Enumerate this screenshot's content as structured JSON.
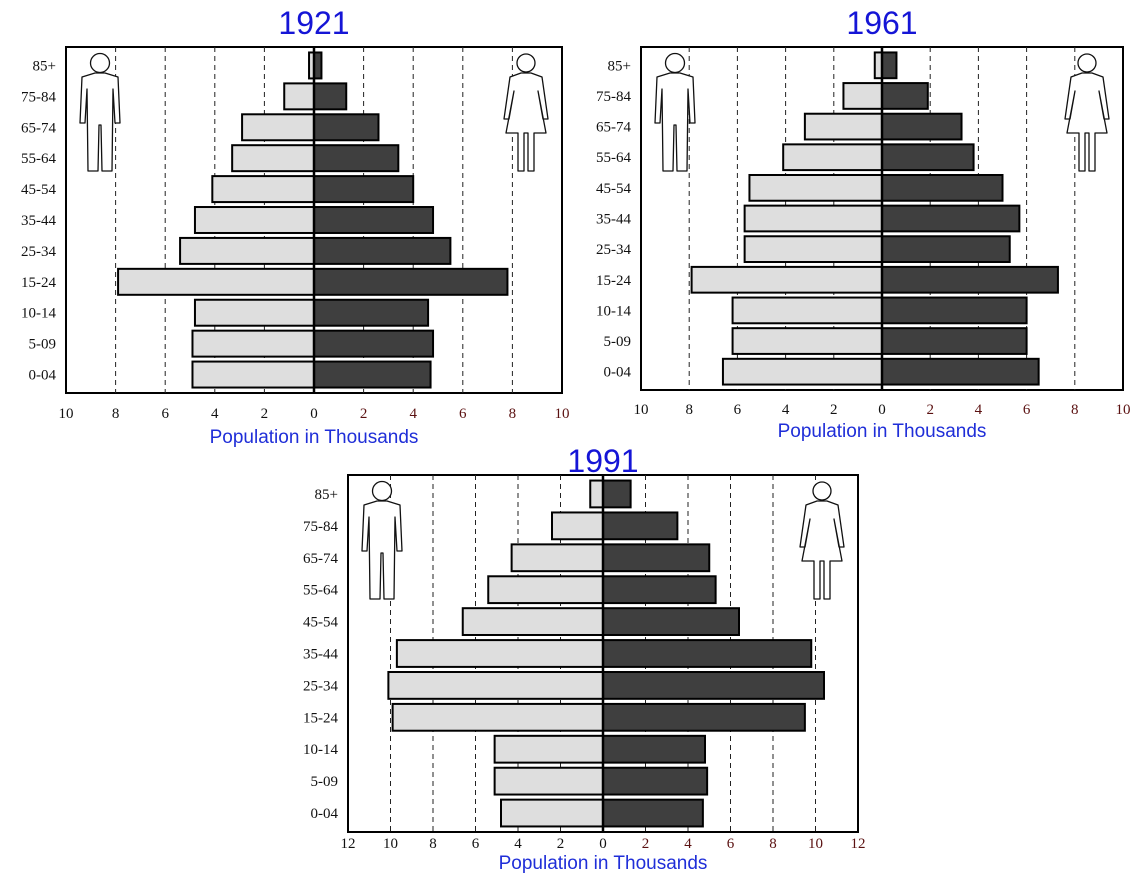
{
  "colors": {
    "male": "#dedede",
    "female": "#3f3f3f",
    "title": "#1515d6",
    "axis_label": "#1f2ed8"
  },
  "icons": {
    "male": "man-figure-icon",
    "female": "woman-figure-icon"
  },
  "chart_data": [
    {
      "type": "bar",
      "orientation": "horizontal-population-pyramid",
      "title": "1921",
      "xlabel": "Population in Thousands",
      "categories": [
        "85+",
        "75-84",
        "65-74",
        "55-64",
        "45-54",
        "35-44",
        "25-34",
        "15-24",
        "10-14",
        "5-09",
        "0-04"
      ],
      "xlim": [
        -10,
        10
      ],
      "xticks_left": [
        "10",
        "8",
        "6",
        "4",
        "2"
      ],
      "xticks_right": [
        "0",
        "2",
        "4",
        "6",
        "8",
        "10"
      ],
      "grid": "vertical dashed",
      "series": [
        {
          "side": "left",
          "values": [
            0.2,
            1.2,
            2.9,
            3.3,
            4.1,
            4.8,
            5.4,
            7.9,
            4.8,
            4.9,
            4.9
          ]
        },
        {
          "side": "right",
          "values": [
            0.3,
            1.3,
            2.6,
            3.4,
            4.0,
            4.8,
            5.5,
            7.8,
            4.6,
            4.8,
            4.7
          ]
        }
      ]
    },
    {
      "type": "bar",
      "orientation": "horizontal-population-pyramid",
      "title": "1961",
      "xlabel": "Population in Thousands",
      "categories": [
        "85+",
        "75-84",
        "65-74",
        "55-64",
        "45-54",
        "35-44",
        "25-34",
        "15-24",
        "10-14",
        "5-09",
        "0-04"
      ],
      "xlim": [
        -10,
        10
      ],
      "xticks_left": [
        "10",
        "8",
        "6",
        "4",
        "2"
      ],
      "xticks_right": [
        "0",
        "2",
        "4",
        "6",
        "8",
        "10"
      ],
      "grid": "vertical dashed",
      "series": [
        {
          "side": "left",
          "values": [
            0.3,
            1.6,
            3.2,
            4.1,
            5.5,
            5.7,
            5.7,
            7.9,
            6.2,
            6.2,
            6.6
          ]
        },
        {
          "side": "right",
          "values": [
            0.6,
            1.9,
            3.3,
            3.8,
            5.0,
            5.7,
            5.3,
            7.3,
            6.0,
            6.0,
            6.5
          ]
        }
      ]
    },
    {
      "type": "bar",
      "orientation": "horizontal-population-pyramid",
      "title": "1991",
      "xlabel": "Population in Thousands",
      "categories": [
        "85+",
        "75-84",
        "65-74",
        "55-64",
        "45-54",
        "35-44",
        "25-34",
        "15-24",
        "10-14",
        "5-09",
        "0-04"
      ],
      "xlim": [
        -12,
        12
      ],
      "xticks_left": [
        "12",
        "10",
        "8",
        "6",
        "4",
        "2"
      ],
      "xticks_right": [
        "0",
        "2",
        "4",
        "6",
        "8",
        "10",
        "12"
      ],
      "grid": "vertical dashed",
      "series": [
        {
          "side": "left",
          "values": [
            0.6,
            2.4,
            4.3,
            5.4,
            6.6,
            9.7,
            10.1,
            9.9,
            5.1,
            5.1,
            4.8
          ]
        },
        {
          "side": "right",
          "values": [
            1.3,
            3.5,
            5.0,
            5.3,
            6.4,
            9.8,
            10.4,
            9.5,
            4.8,
            4.9,
            4.7
          ]
        }
      ]
    }
  ]
}
